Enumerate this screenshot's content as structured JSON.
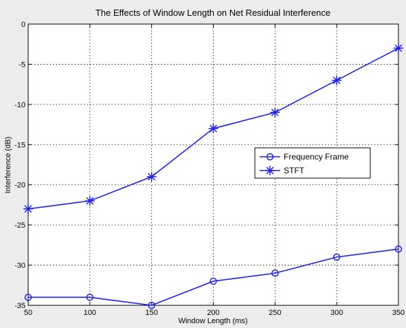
{
  "chart_data": {
    "type": "line",
    "title": "The Effects of Window Length on Net Residual Interference",
    "xlabel": "Window Length (ms)",
    "ylabel": "Interference (dB)",
    "xlim": [
      50,
      350
    ],
    "ylim": [
      -35,
      0
    ],
    "xticks": [
      50,
      100,
      150,
      200,
      250,
      300,
      350
    ],
    "yticks": [
      0,
      -5,
      -10,
      -15,
      -20,
      -25,
      -30,
      -35
    ],
    "grid": true,
    "legend_position": "center-right",
    "x": [
      50,
      100,
      150,
      200,
      250,
      300,
      350
    ],
    "series": [
      {
        "name": "Frequency Frame",
        "marker": "circle",
        "color": "#1f1ff0",
        "values": [
          -34,
          -34,
          -35,
          -32,
          -31,
          -29,
          -28
        ]
      },
      {
        "name": "STFT",
        "marker": "star",
        "color": "#1f1ff0",
        "values": [
          -23,
          -22,
          -19,
          -13,
          -11,
          -7,
          -3
        ]
      }
    ]
  }
}
